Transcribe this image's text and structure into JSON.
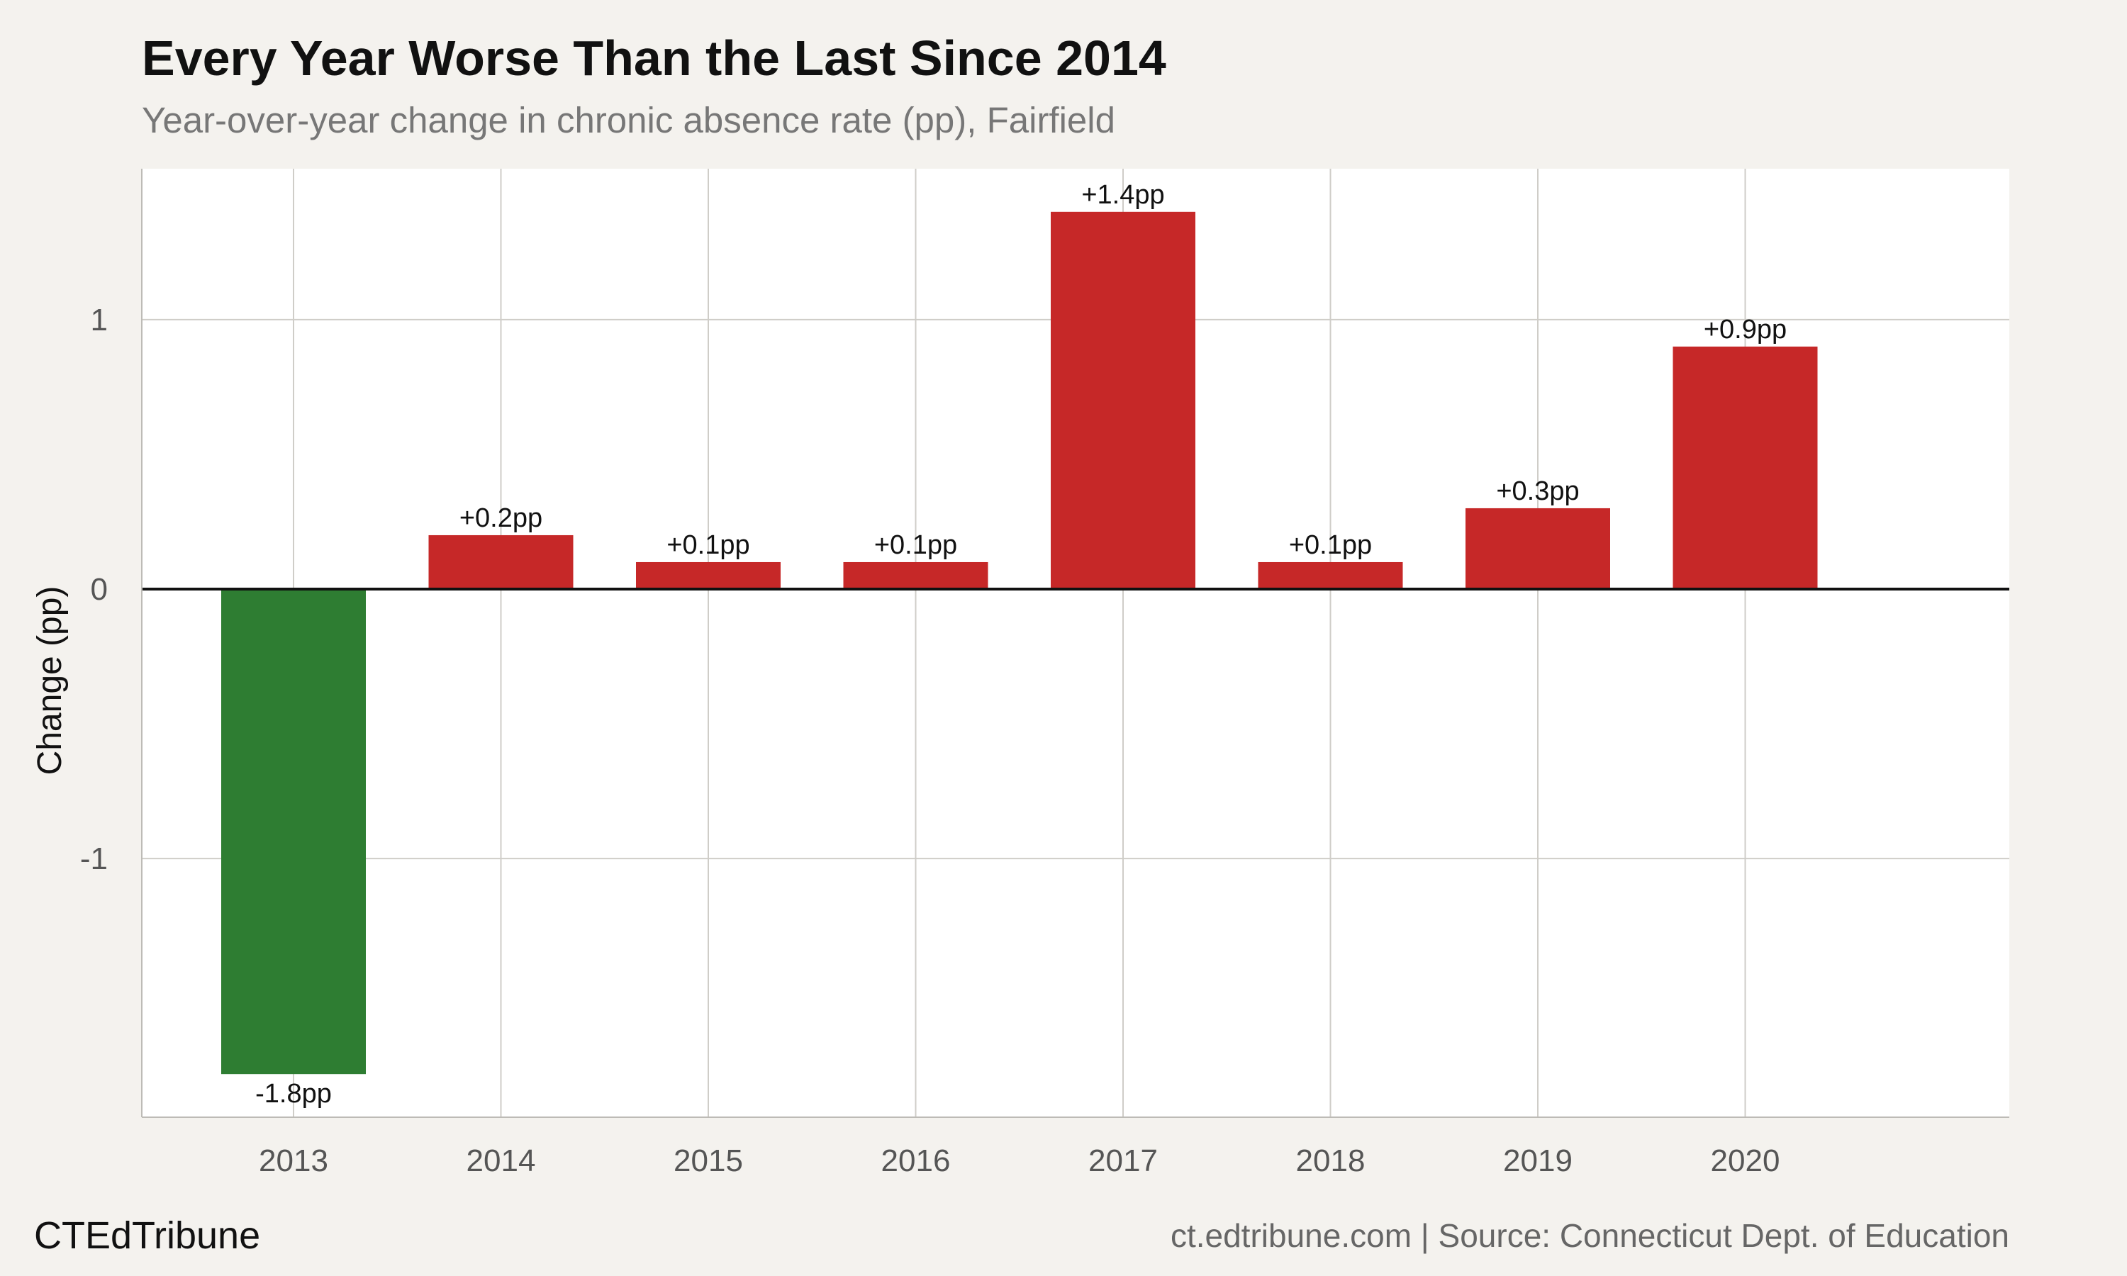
{
  "title": "Every Year Worse Than the Last Since 2014",
  "subtitle": "Year-over-year change in chronic absence rate (pp), Fairfield",
  "brand": "CTEdTribune",
  "source": "ct.edtribune.com | Source: Connecticut Dept. of Education",
  "colors": {
    "increase": "#c62828",
    "decrease": "#2e7d32",
    "panel": "#ffffff",
    "background": "#f4f2ee",
    "grid": "#cfcdc8",
    "zero_line": "#111111"
  },
  "chart_data": {
    "type": "bar",
    "title": "Every Year Worse Than the Last Since 2014",
    "subtitle": "Year-over-year change in chronic absence rate (pp), Fairfield",
    "xlabel": "",
    "ylabel": "Change (pp)",
    "categories": [
      "2013",
      "2014",
      "2015",
      "2016",
      "2017",
      "2018",
      "2019",
      "2020"
    ],
    "values": [
      -1.8,
      0.2,
      0.1,
      0.1,
      1.4,
      0.1,
      0.3,
      0.9
    ],
    "labels": [
      "-1.8pp",
      "+0.2pp",
      "+0.1pp",
      "+0.1pp",
      "+1.4pp",
      "+0.1pp",
      "+0.3pp",
      "+0.9pp"
    ],
    "ylim": [
      -1.96,
      1.56
    ],
    "yticks": [
      -1,
      0,
      1
    ],
    "ytick_labels": [
      "-1",
      "0",
      "1"
    ],
    "grid": true,
    "legend": "none"
  }
}
